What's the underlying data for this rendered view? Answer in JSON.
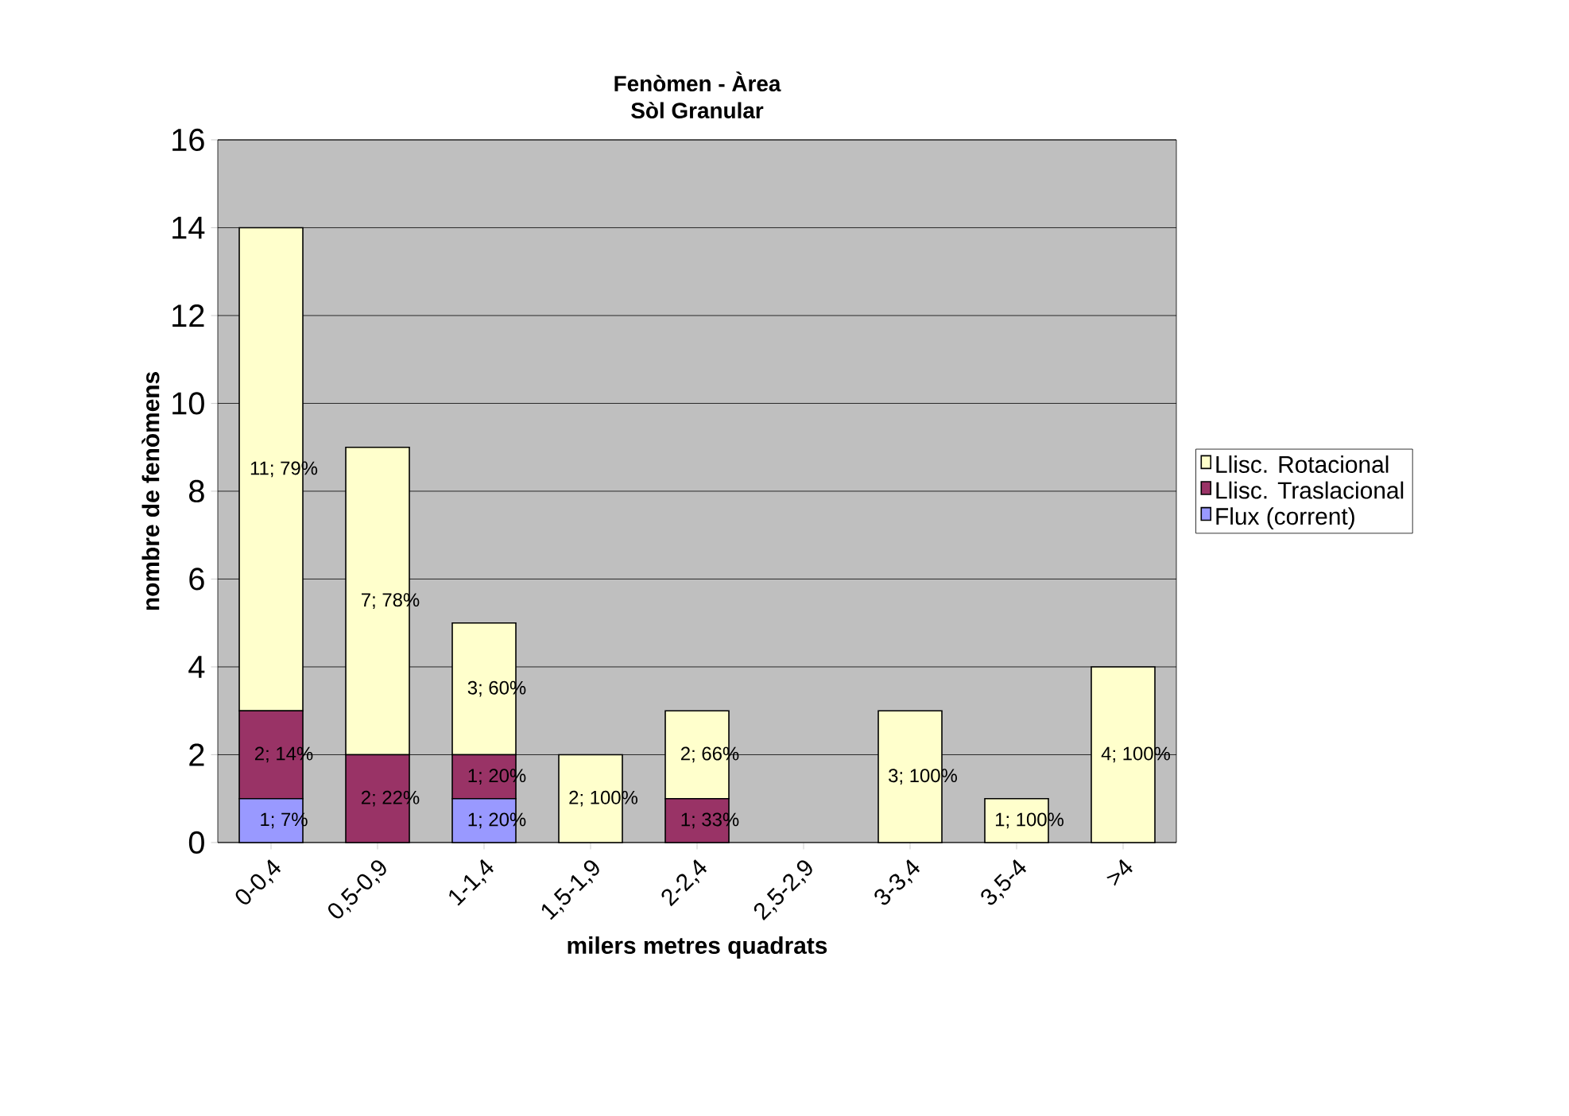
{
  "chart_data": {
    "type": "bar",
    "stacked": true,
    "title": "Fenòmen - Àrea",
    "subtitle": "Sòl Granular",
    "xlabel": "milers metres quadrats",
    "ylabel": "nombre de fenòmens",
    "categories": [
      "0-0,4",
      "0,5-0,9",
      "1-1,4",
      "1,5-1,9",
      "2-2,4",
      "2,5-2,9",
      "3-3,4",
      "3,5-4",
      ">4"
    ],
    "ylim": [
      0,
      16
    ],
    "yticks": [
      0,
      2,
      4,
      6,
      8,
      10,
      12,
      14,
      16
    ],
    "grid": "y",
    "legend": "right",
    "series": [
      {
        "name": "Flux (corrent)",
        "color": "#9999ff",
        "values": [
          1,
          0,
          1,
          0,
          0,
          0,
          0,
          0,
          0
        ],
        "value_labels": [
          "1; 7%",
          null,
          "1; 20%",
          null,
          null,
          null,
          null,
          null,
          null
        ]
      },
      {
        "name": "Llisc. Traslacional",
        "color": "#993366",
        "values": [
          2,
          2,
          1,
          0,
          1,
          0,
          0,
          0,
          0
        ],
        "value_labels": [
          "2; 14%",
          "2; 22%",
          "1; 20%",
          null,
          "1; 33%",
          null,
          null,
          null,
          null
        ]
      },
      {
        "name": "Llisc. Rotacional",
        "color": "#ffffcc",
        "values": [
          11,
          7,
          3,
          2,
          2,
          0,
          3,
          1,
          4
        ],
        "value_labels": [
          "11; 79%",
          "7; 78%",
          "3; 60%",
          "2; 100%",
          "2; 66%",
          null,
          "3; 100%",
          "1; 100%",
          "4; 100%"
        ]
      }
    ]
  }
}
